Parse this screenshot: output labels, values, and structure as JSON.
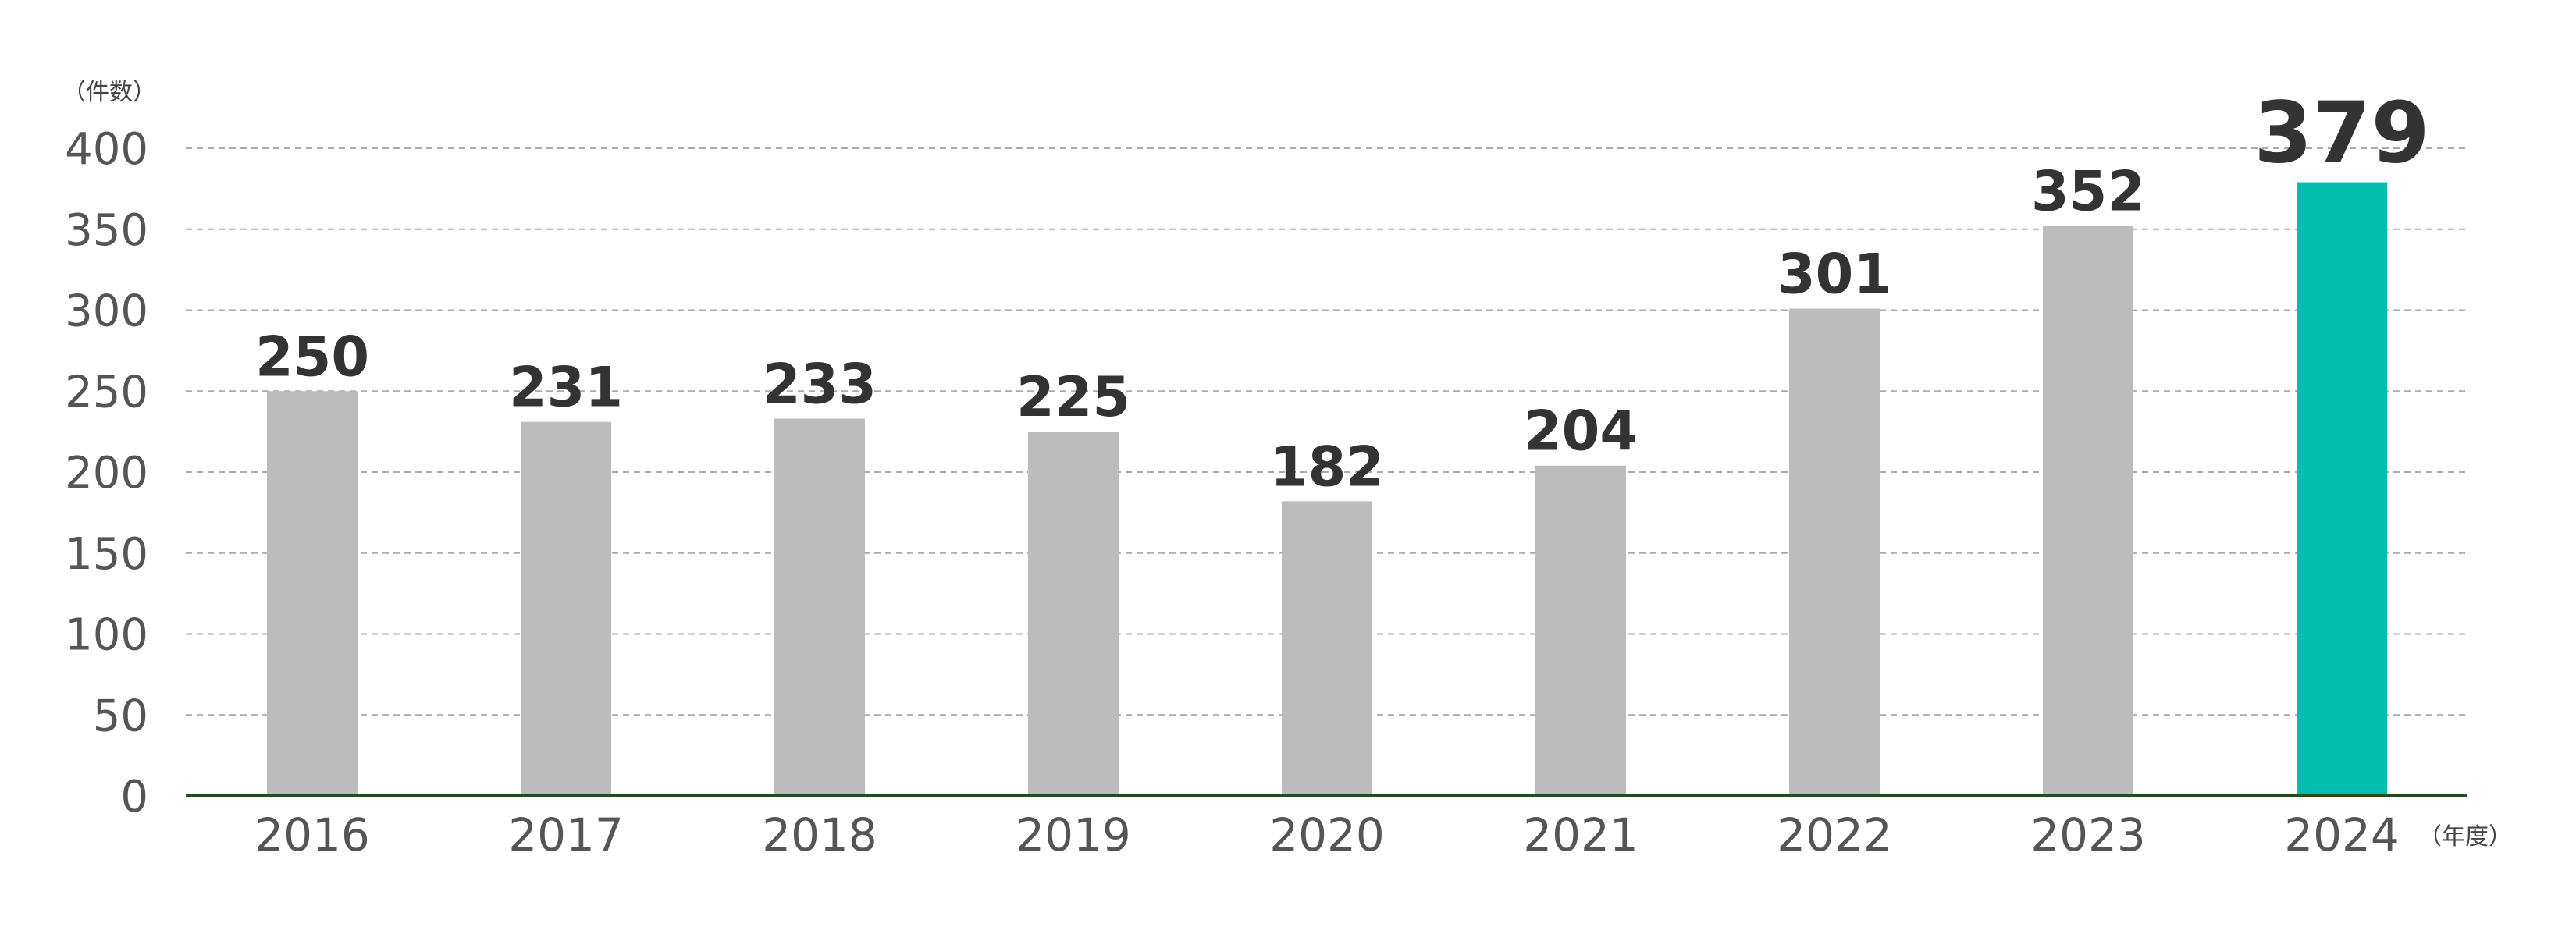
{
  "chart_data": {
    "type": "bar",
    "y_unit_label": "（件数）",
    "x_unit_label": "（年度）",
    "categories": [
      "2016",
      "2017",
      "2018",
      "2019",
      "2020",
      "2021",
      "2022",
      "2023",
      "2024"
    ],
    "values": [
      250,
      231,
      233,
      225,
      182,
      204,
      301,
      352,
      379
    ],
    "value_labels": [
      "250",
      "231",
      "233",
      "225",
      "182",
      "204",
      "301",
      "352",
      "379"
    ],
    "ylim": [
      0,
      400
    ],
    "y_ticks": [
      "0",
      "50",
      "100",
      "150",
      "200",
      "250",
      "300",
      "350",
      "400"
    ],
    "y_tick_values": [
      0,
      50,
      100,
      150,
      200,
      250,
      300,
      350,
      400
    ],
    "grid": true,
    "highlight_index": 8,
    "colors": {
      "bar": "#bbbcbb",
      "highlight_bar": "#00bfb1",
      "grid": "#aaaaaa",
      "axis": "#1e4d1e"
    }
  }
}
